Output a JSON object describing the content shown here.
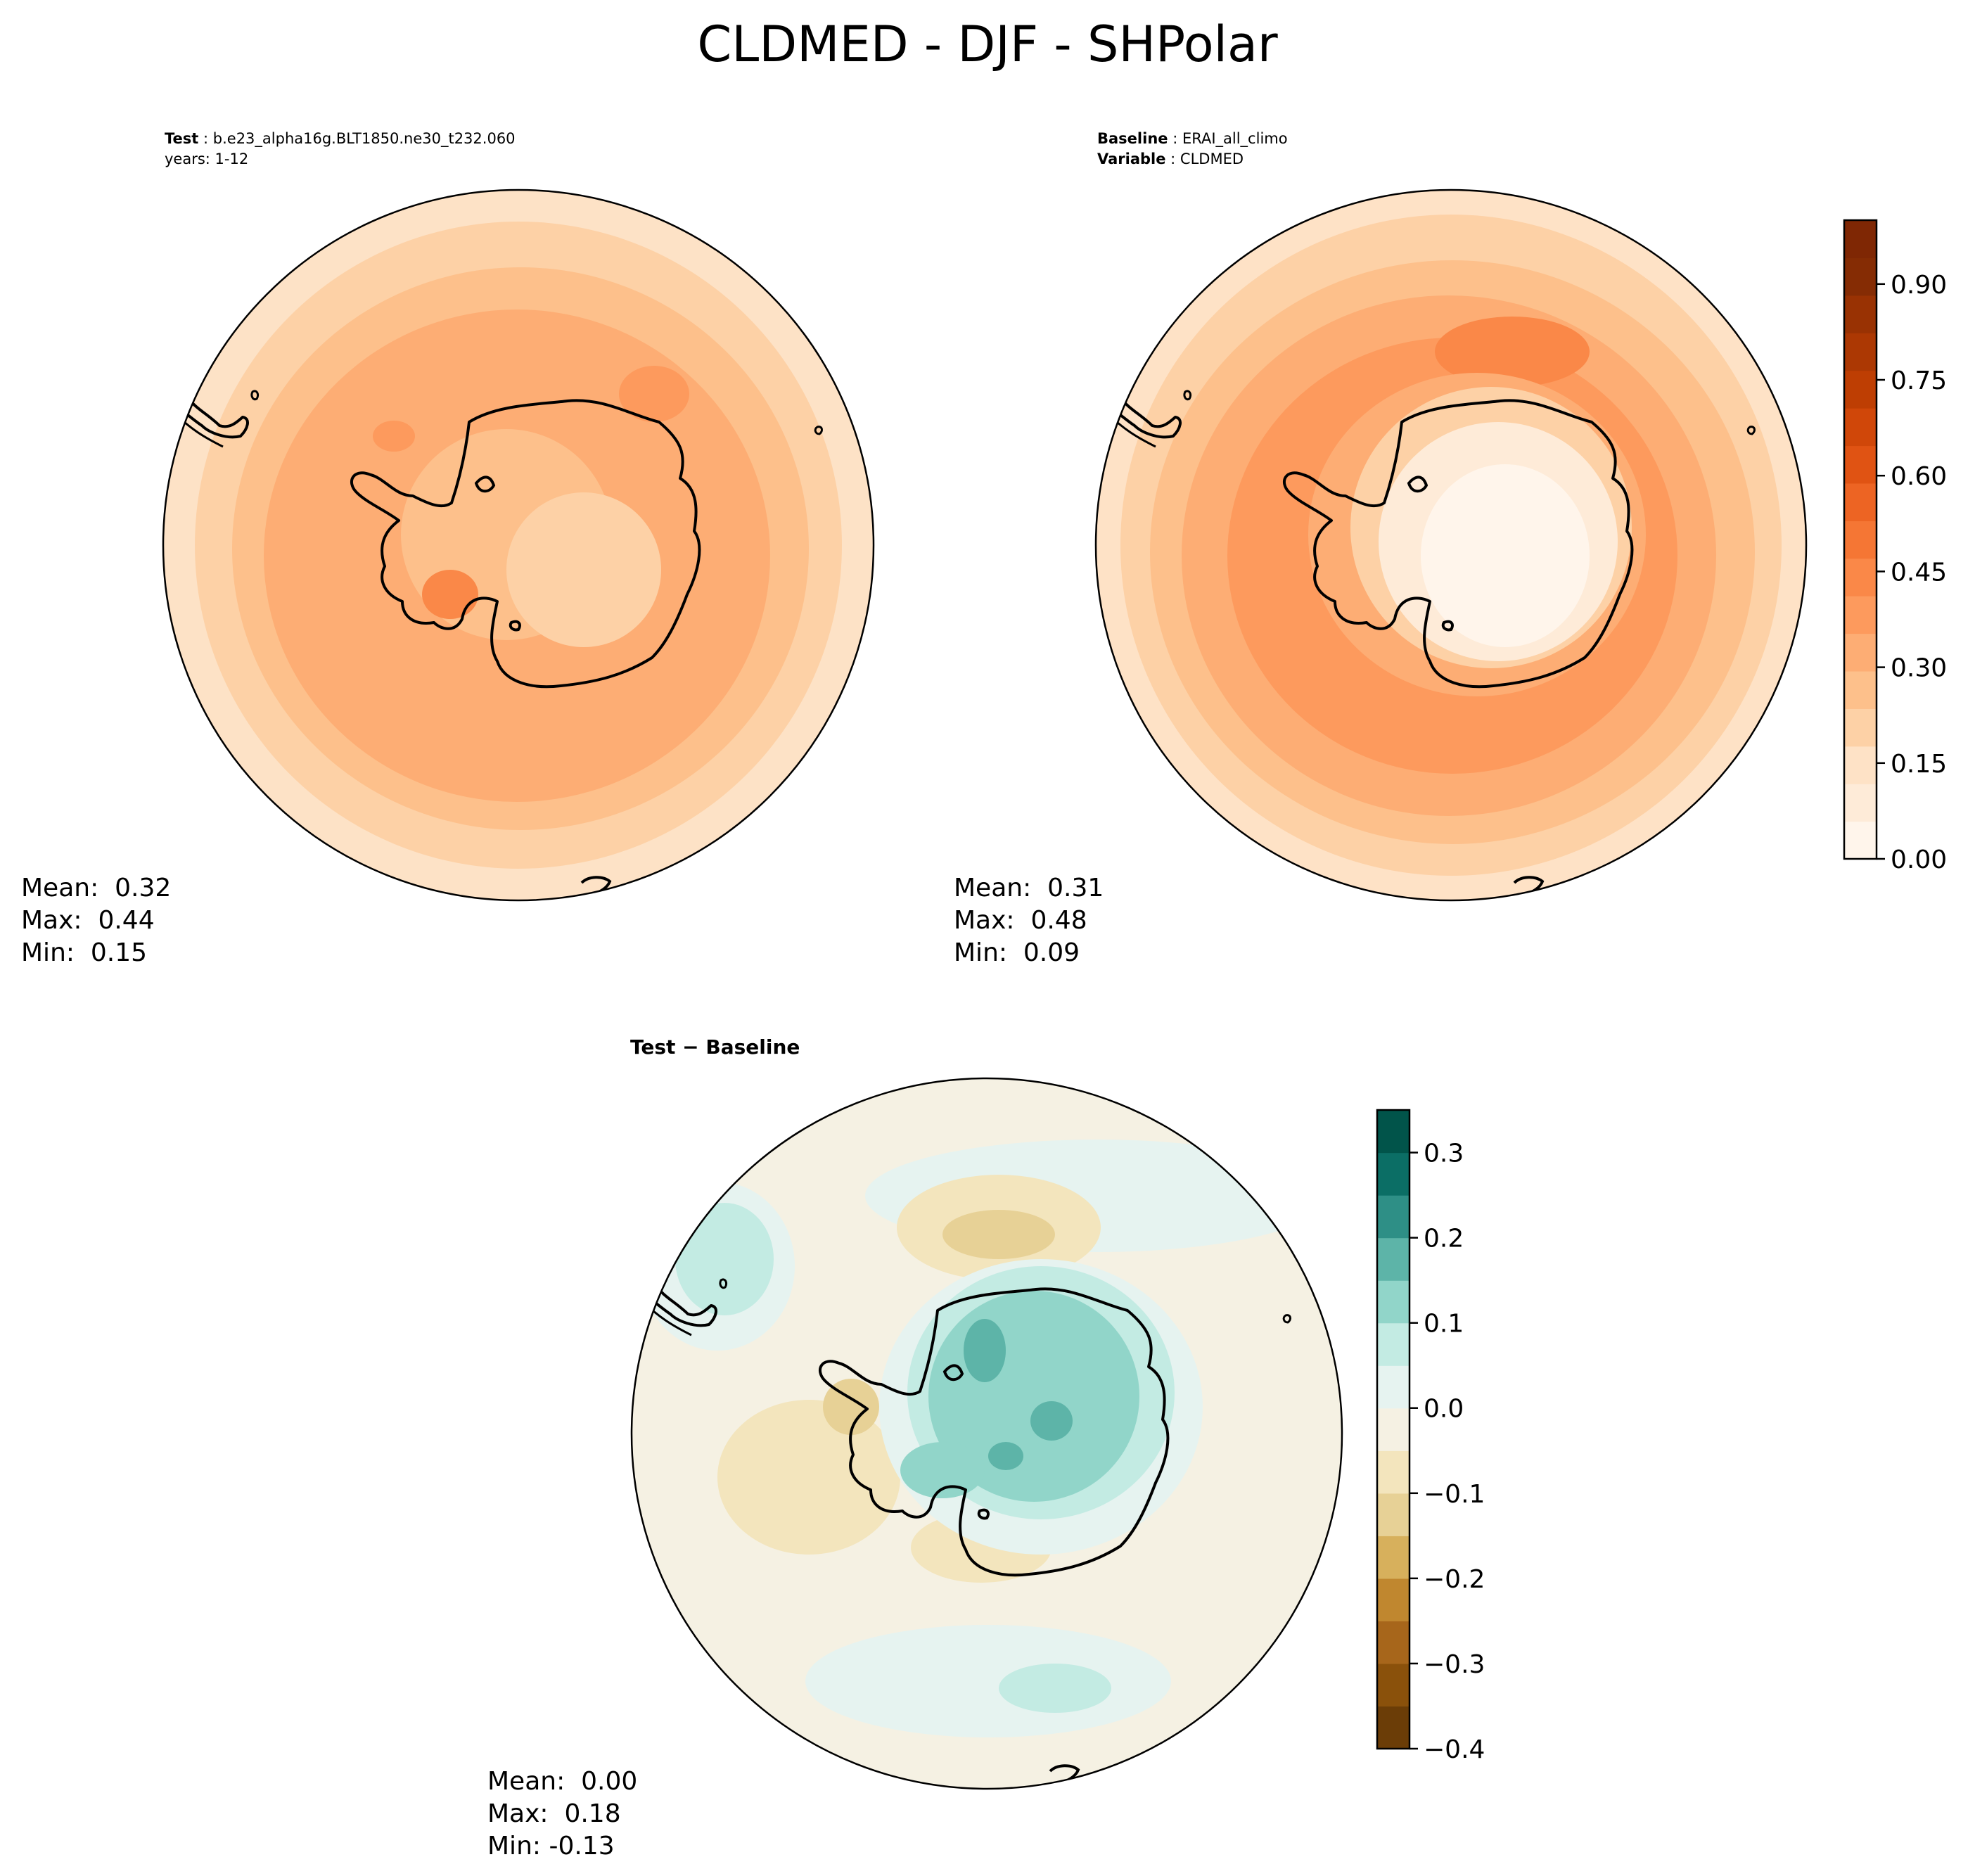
{
  "figure": {
    "title": "CLDMED - DJF - SHPolar"
  },
  "panels": {
    "test": {
      "header_label": "Test",
      "header_value": "b.e23_alpha16g.BLT1850.ne30_t232.060",
      "header_line2": "years: 1-12",
      "stats": {
        "mean": "Mean:  0.32",
        "max": "Max:  0.44",
        "min": "Min:  0.15"
      }
    },
    "baseline": {
      "header_label": "Baseline",
      "header_value": "ERAI_all_climo",
      "header_label2": "Variable",
      "header_value2": "CLDMED",
      "stats": {
        "mean": "Mean:  0.31",
        "max": "Max:  0.48",
        "min": "Min:  0.09"
      }
    },
    "diff": {
      "header_label": "Test − Baseline",
      "stats": {
        "mean": "Mean:  0.00",
        "max": "Max:  0.18",
        "min": "Min: -0.13"
      }
    }
  },
  "colorbars": {
    "values": {
      "range": [
        0,
        1
      ],
      "ticks": [
        "0.00",
        "0.15",
        "0.30",
        "0.45",
        "0.60",
        "0.75",
        "0.90"
      ],
      "colors": [
        "#fff5eb",
        "#feebd8",
        "#fee2c6",
        "#fdd1a6",
        "#fdc08b",
        "#fdad74",
        "#fd9a5d",
        "#fa8848",
        "#f57634",
        "#ed6423",
        "#e05313",
        "#d04709",
        "#be3e03",
        "#ac3803",
        "#993203",
        "#852c04",
        "#7f2704"
      ]
    },
    "difference": {
      "range": [
        -0.4,
        0.35
      ],
      "ticks": [
        "−0.4",
        "−0.3",
        "−0.2",
        "−0.1",
        "0.0",
        "0.1",
        "0.2",
        "0.3"
      ],
      "colors": [
        "#6b3d07",
        "#8a510b",
        "#a7661b",
        "#c0872f",
        "#d7b05c",
        "#e7d196",
        "#f3e5bd",
        "#f5f1e3",
        "#e6f3f0",
        "#c3ebe3",
        "#91d5c9",
        "#5db4a8",
        "#2e8f86",
        "#0b6e65",
        "#01544a"
      ]
    }
  },
  "legend": {
    "colors": {
      "land_outline": "#000000"
    }
  }
}
